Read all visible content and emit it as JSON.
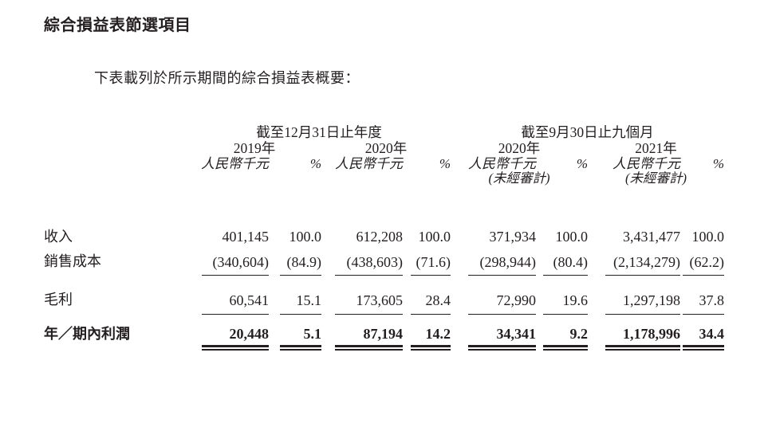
{
  "document": {
    "title": "綜合損益表節選項目",
    "intro": "下表載列於所示期間的綜合損益表概要："
  },
  "table": {
    "group_headers": [
      "截至12月31日止年度",
      "截至9月30日止九個月"
    ],
    "year_headers": [
      "2019年",
      "2020年",
      "2020年",
      "2021年"
    ],
    "unit_label": "人民幣千元",
    "percent_label": "%",
    "unaudited_label": "(未經審計)",
    "rows": [
      {
        "label": "收入",
        "style": "plain",
        "values": [
          "401,145",
          "100.0",
          "612,208",
          "100.0",
          "371,934",
          "100.0",
          "3,431,477",
          "100.0"
        ]
      },
      {
        "label": "銷售成本",
        "style": "underline",
        "values": [
          "(340,604)",
          "(84.9)",
          "(438,603)",
          "(71.6)",
          "(298,944)",
          "(80.4)",
          "(2,134,279)",
          "(62.2)"
        ]
      },
      {
        "label": "毛利",
        "style": "underline",
        "values": [
          "60,541",
          "15.1",
          "173,605",
          "28.4",
          "72,990",
          "19.6",
          "1,297,198",
          "37.8"
        ]
      },
      {
        "label": "年／期內利潤",
        "style": "total",
        "values": [
          "20,448",
          "5.1",
          "87,194",
          "14.2",
          "34,341",
          "9.2",
          "1,178,996",
          "34.4"
        ]
      }
    ]
  },
  "colors": {
    "text": "#231f20",
    "rule": "#231f20",
    "background": "#ffffff"
  }
}
